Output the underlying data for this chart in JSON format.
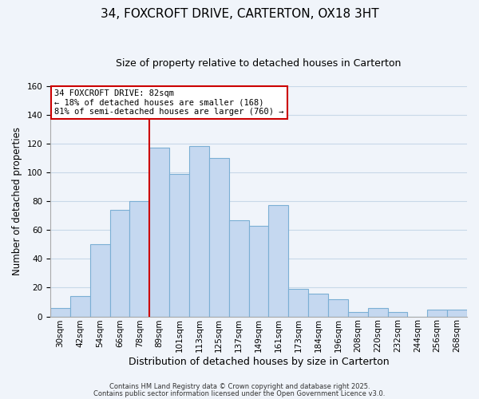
{
  "title": "34, FOXCROFT DRIVE, CARTERTON, OX18 3HT",
  "subtitle": "Size of property relative to detached houses in Carterton",
  "xlabel": "Distribution of detached houses by size in Carterton",
  "ylabel": "Number of detached properties",
  "bar_labels": [
    "30sqm",
    "42sqm",
    "54sqm",
    "66sqm",
    "78sqm",
    "89sqm",
    "101sqm",
    "113sqm",
    "125sqm",
    "137sqm",
    "149sqm",
    "161sqm",
    "173sqm",
    "184sqm",
    "196sqm",
    "208sqm",
    "220sqm",
    "232sqm",
    "244sqm",
    "256sqm",
    "268sqm"
  ],
  "bar_values": [
    6,
    14,
    50,
    74,
    80,
    117,
    99,
    118,
    110,
    67,
    63,
    77,
    19,
    16,
    12,
    3,
    6,
    3,
    0,
    5,
    5
  ],
  "bar_color": "#c5d8f0",
  "bar_edge_color": "#7bafd4",
  "ylim": [
    0,
    160
  ],
  "yticks": [
    0,
    20,
    40,
    60,
    80,
    100,
    120,
    140,
    160
  ],
  "vline_x": 4.5,
  "vline_color": "#cc0000",
  "annotation_text": "34 FOXCROFT DRIVE: 82sqm\n← 18% of detached houses are smaller (168)\n81% of semi-detached houses are larger (760) →",
  "annotation_box_color": "#ffffff",
  "annotation_box_edge": "#cc0000",
  "footer1": "Contains HM Land Registry data © Crown copyright and database right 2025.",
  "footer2": "Contains public sector information licensed under the Open Government Licence v3.0.",
  "background_color": "#f0f4fa",
  "grid_color": "#c8d8e8",
  "title_fontsize": 11,
  "subtitle_fontsize": 9,
  "ylabel_fontsize": 8.5,
  "xlabel_fontsize": 9,
  "tick_fontsize": 7.5,
  "annotation_fontsize": 7.5,
  "footer_fontsize": 6.0
}
